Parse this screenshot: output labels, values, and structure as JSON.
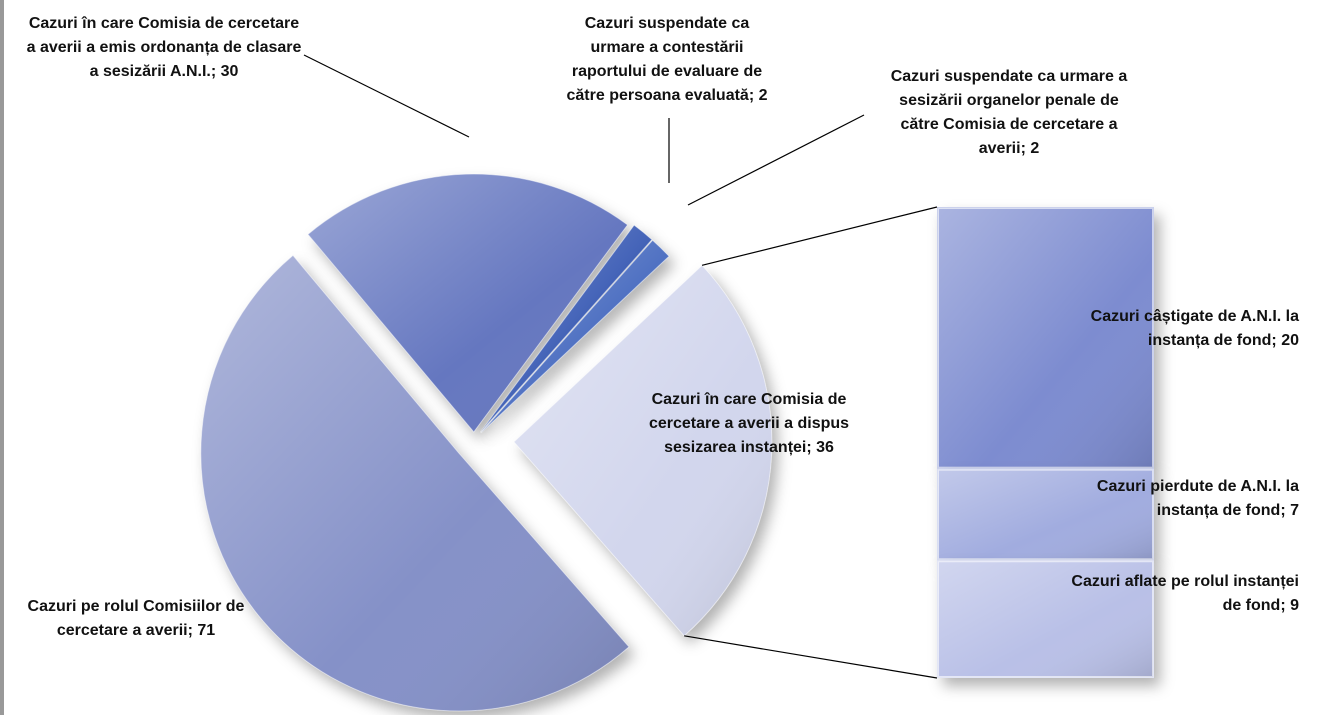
{
  "chart_data": {
    "type": "pie",
    "values": [
      30,
      2,
      2,
      36,
      71
    ],
    "value_labels": [
      "Cazuri în care Comisia de cercetare a averii a emis ordonanța de clasare a sesizării A.N.I.; 30",
      "Cazuri suspendate ca urmare a contestării raportului de evaluare de către persoana evaluată; 2",
      "Cazuri suspendate ca urmare a sesizării organelor penale de către Comisia de cercetare a averii; 2",
      "Cazuri în care Comisia de cercetare a averii a dispus sesizarea instanței; 36",
      "Cazuri pe rolul Comisiilor de cercetare a averii; 71"
    ],
    "colors": [
      "#6577c0",
      "#3a5bb5",
      "#4a6cc0",
      "#d2d6ed",
      "#8591c8"
    ],
    "bar": {
      "values": [
        20,
        7,
        9
      ],
      "value_labels": [
        "Cazuri câștigate de A.N.I. la instanța de fond; 20",
        "Cazuri pierdute de A.N.I. la instanța de fond; 7",
        "Cazuri aflate pe rolul instanței de fond; 9"
      ],
      "colors": [
        "#7d8cd0",
        "#a1acdf",
        "#b9c0e7"
      ]
    }
  }
}
